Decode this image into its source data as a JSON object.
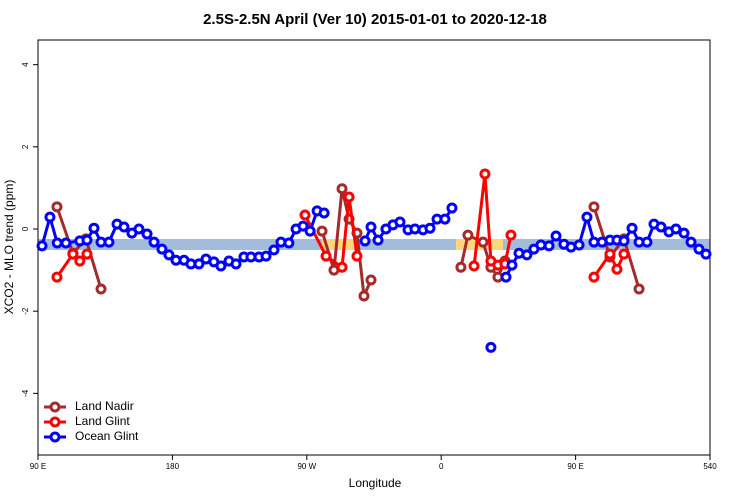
{
  "chart_data": {
    "type": "line",
    "title": "2.5S-2.5N April (Ver 10)   2015-01-01 to 2020-12-18",
    "xlabel": "Longitude",
    "ylabel": "XCO2 - MLO trend (ppm)",
    "xlim": [
      90,
      540
    ],
    "ylim": [
      -5.5,
      4.6
    ],
    "xticks": [
      {
        "value": 90,
        "label": "90 E"
      },
      180,
      {
        "value": 270,
        "label": "90 W"
      },
      {
        "value": 360,
        "label": "0"
      },
      {
        "value": 450,
        "label": "90 E"
      },
      540
    ],
    "yticks": [
      -4,
      -2,
      0,
      2,
      4
    ],
    "legend": "bottomleft",
    "series": [
      {
        "name": "Land Nadir",
        "color": "#a52a2a",
        "x": [
          102.7,
          113.4,
          122.1,
          132.2,
          null,
          280.2,
          288.2,
          293.6,
          298.3,
          303.6,
          308.3,
          313,
          null,
          373.2,
          377.9,
          388,
          393.3,
          398,
          402.7,
          null,
          462.3,
          473,
          482.4,
          492.5
        ],
        "values": [
          0.54,
          -0.59,
          -0.24,
          -1.46,
          null,
          -0.05,
          -1.0,
          0.98,
          0.24,
          -0.1,
          -1.63,
          -1.24,
          null,
          -0.93,
          -0.15,
          -0.32,
          -0.93,
          -1.17,
          -0.78,
          null,
          0.54,
          -0.68,
          -0.24,
          -1.46
        ]
      },
      {
        "name": "Land Glint",
        "color": "#ff0000",
        "x": [
          102.7,
          113.4,
          118,
          122.8,
          null,
          268.8,
          282.9,
          293.6,
          298.3,
          303.6,
          null,
          382,
          389.3,
          393.3,
          398,
          402.7,
          406.7,
          null,
          462.3,
          473,
          477.7,
          482.4
        ],
        "values": [
          -1.17,
          -0.61,
          -0.78,
          -0.61,
          null,
          0.34,
          -0.66,
          -0.93,
          0.78,
          -0.66,
          null,
          -0.9,
          1.34,
          -0.78,
          -0.88,
          -0.85,
          -0.15,
          null,
          -1.17,
          -0.61,
          -0.98,
          -0.61
        ]
      },
      {
        "name": "Ocean Glint",
        "color": "#0000ff",
        "x": [
          92.7,
          98,
          102.9,
          108.7,
          118,
          122.8,
          127.5,
          132.2,
          137.5,
          142.9,
          147.6,
          152.9,
          157.6,
          163,
          167.7,
          173,
          177.7,
          182.4,
          187.8,
          192.4,
          197.8,
          202.5,
          207.8,
          212.5,
          217.9,
          222.6,
          227.9,
          232.6,
          238,
          242.7,
          248,
          252.7,
          258,
          262.8,
          267.5,
          272.2,
          276.9,
          281.6,
          null,
          309,
          313,
          317.7,
          323,
          327.7,
          332.4,
          337.8,
          342.4,
          347.8,
          352.5,
          357.2,
          362.5,
          367.2,
          null,
          393.3,
          null,
          403.4,
          407.4,
          412.1,
          417.4,
          422.1,
          426.8,
          432.2,
          436.9,
          442.2,
          446.9,
          452.3,
          457.6,
          462.3,
          467.7,
          473,
          477.7,
          482.4,
          487.8,
          492.5,
          497.8,
          502.5,
          507.2,
          512.5,
          517.2,
          522.6,
          527.3,
          532.6,
          537.3
        ],
        "values": [
          -0.41,
          0.29,
          -0.34,
          -0.34,
          -0.29,
          -0.27,
          0.02,
          -0.32,
          -0.32,
          0.12,
          0.05,
          -0.1,
          0,
          -0.12,
          -0.32,
          -0.49,
          -0.63,
          -0.76,
          -0.76,
          -0.85,
          -0.85,
          -0.73,
          -0.8,
          -0.9,
          -0.78,
          -0.85,
          -0.68,
          -0.68,
          -0.68,
          -0.66,
          -0.51,
          -0.32,
          -0.34,
          0,
          0.07,
          -0.05,
          0.44,
          0.39,
          null,
          -0.29,
          0.05,
          -0.27,
          0,
          0.1,
          0.17,
          -0.02,
          0,
          -0.02,
          0.02,
          0.24,
          0.24,
          0.51,
          null,
          -2.88,
          null,
          -1.17,
          -0.88,
          -0.59,
          -0.63,
          -0.49,
          -0.39,
          -0.41,
          -0.17,
          -0.37,
          -0.44,
          -0.39,
          0.29,
          -0.32,
          -0.32,
          -0.27,
          -0.27,
          -0.29,
          0.02,
          -0.32,
          -0.32,
          0.12,
          0.05,
          -0.07,
          0,
          -0.1,
          -0.32,
          -0.49,
          -0.61
        ]
      }
    ]
  }
}
